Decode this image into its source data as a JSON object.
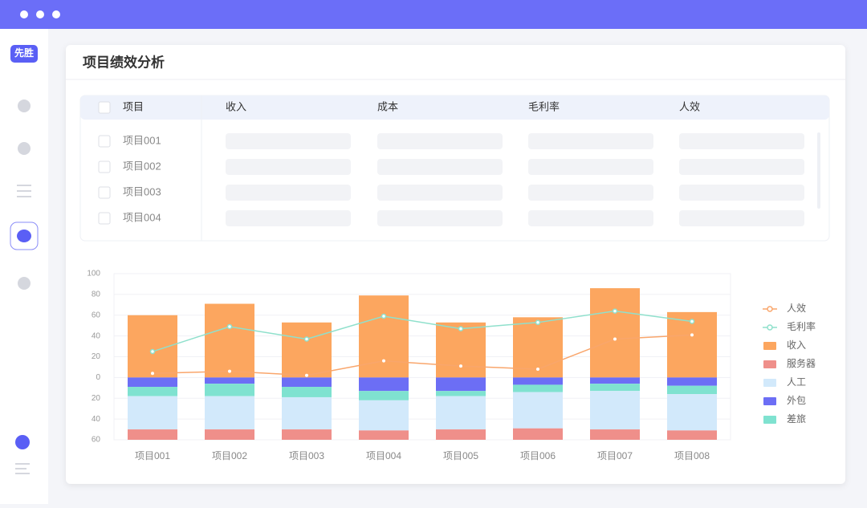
{
  "logo": "先胜",
  "header": {
    "title": "项目绩效分析"
  },
  "table": {
    "columns": [
      "项目",
      "收入",
      "成本",
      "毛利率",
      "人效"
    ],
    "rows": [
      "项目001",
      "项目002",
      "项目003",
      "项目004"
    ]
  },
  "chart_data": {
    "type": "bar",
    "categories": [
      "项目001",
      "项目002",
      "项目003",
      "项目004",
      "项目005",
      "项目006",
      "项目007",
      "项目008"
    ],
    "ylim": [
      -60,
      100
    ],
    "yticks": [
      {
        "value": -60,
        "label": "60"
      },
      {
        "value": -40,
        "label": "40"
      },
      {
        "value": -20,
        "label": "20"
      },
      0,
      20,
      40,
      60,
      80,
      100
    ],
    "grid": true,
    "legend": "right",
    "series": [
      {
        "name": "人效",
        "type": "line",
        "color": "#f9a66c",
        "values": [
          4,
          6,
          2,
          16,
          11,
          8,
          37,
          41
        ]
      },
      {
        "name": "毛利率",
        "type": "line",
        "color": "#8fe0cc",
        "values": [
          25,
          49,
          37,
          59,
          47,
          53,
          64,
          54
        ]
      },
      {
        "name": "收入",
        "type": "bar",
        "color": "#fca65f",
        "values": [
          60,
          71,
          53,
          79,
          53,
          58,
          86,
          63
        ]
      },
      {
        "name": "服务器",
        "type": "bar",
        "color": "#ef8f8a",
        "values": [
          -10,
          -10,
          -10,
          -9,
          -10,
          -11,
          -10,
          -9
        ]
      },
      {
        "name": "人工",
        "type": "bar",
        "color": "#d2e9fb",
        "values": [
          -32,
          -32,
          -31,
          -29,
          -32,
          -35,
          -37,
          -35
        ]
      },
      {
        "name": "外包",
        "type": "bar",
        "color": "#6c6ef5",
        "values": [
          -9,
          -6,
          -9,
          -13,
          -13,
          -7,
          -6,
          -8
        ]
      },
      {
        "name": "差旅",
        "type": "bar",
        "color": "#7fe2d0",
        "values": [
          -9,
          -12,
          -10,
          -9,
          -5,
          -7,
          -7,
          -8
        ]
      }
    ]
  }
}
